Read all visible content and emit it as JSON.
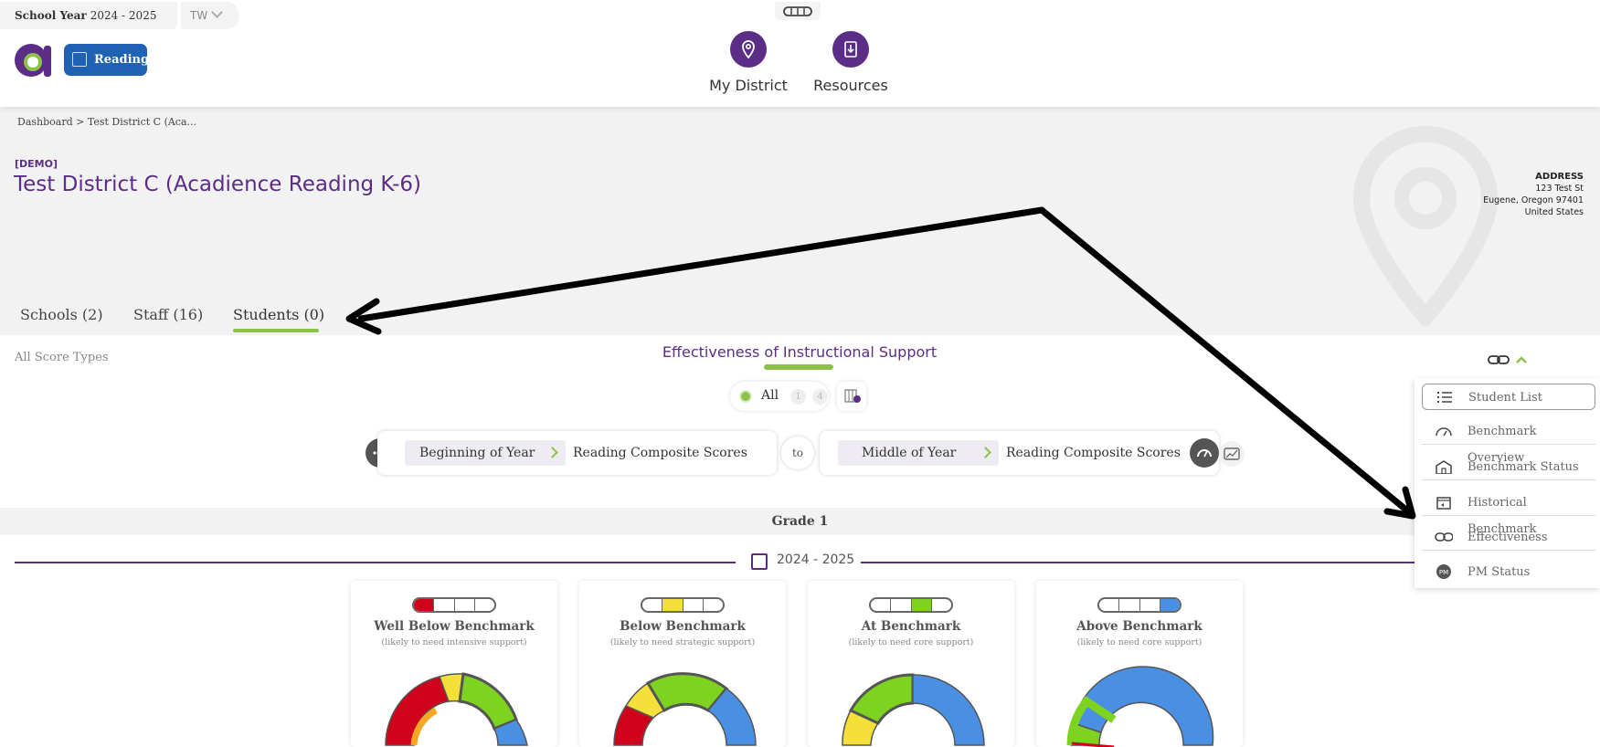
{
  "topbar": {
    "school_year_label": "School Year",
    "school_year_value": "2024 - 2025",
    "user_initials": "TW",
    "product_badge": "Reading",
    "nav": [
      {
        "label": "My District",
        "icon": "map-pin-icon"
      },
      {
        "label": "Resources",
        "icon": "download-doc-icon"
      }
    ]
  },
  "header": {
    "breadcrumb": "Dashboard > Test District C (Aca...",
    "demo_tag": "[DEMO]",
    "district_name": "Test District C (Acadience Reading K-6)",
    "address": {
      "heading": "ADDRESS",
      "line1": "123 Test St",
      "line2": "Eugene, Oregon 97401",
      "line3": "United States"
    },
    "tabs": [
      {
        "label": "Schools (2)"
      },
      {
        "label": "Staff (16)"
      },
      {
        "label": "Students (0)",
        "active": true
      }
    ]
  },
  "main": {
    "score_types": "All Score Types",
    "title": "Effectiveness of Instructional Support",
    "filter": {
      "all_label": "All",
      "count_1": "1",
      "count_2": "4"
    },
    "from": {
      "period": "Beginning of Year",
      "measure": "Reading Composite Scores"
    },
    "to_label": "to",
    "to": {
      "period": "Middle of Year",
      "measure": "Reading Composite Scores"
    },
    "grade": "Grade 1",
    "year": "2024 - 2025",
    "cards": [
      {
        "title": "Well Below Benchmark",
        "subtitle": "(likely to need intensive support)",
        "highlight": "#d0021b"
      },
      {
        "title": "Below Benchmark",
        "subtitle": "(likely to need strategic support)",
        "highlight": "#f5e03a"
      },
      {
        "title": "At Benchmark",
        "subtitle": "(likely to need core support)",
        "highlight": "#7ed321"
      },
      {
        "title": "Above Benchmark",
        "subtitle": "(likely to need core support)",
        "highlight": "#4a90e2"
      }
    ]
  },
  "menu": {
    "items": [
      {
        "label": "Student List",
        "icon": "list-icon"
      },
      {
        "label": "Benchmark Overview",
        "icon": "gauge-icon"
      },
      {
        "label": "Benchmark Status",
        "icon": "school-icon"
      },
      {
        "label": "Historical Benchmark",
        "icon": "calendar-history-icon"
      },
      {
        "label": "Effectiveness",
        "icon": "link-icon"
      },
      {
        "label": "PM Status",
        "icon": "pm-icon"
      }
    ]
  },
  "colors": {
    "brand_purple": "#5c2d86",
    "accent_green": "#8bc34a",
    "well_below": "#d0021b",
    "below": "#f5e03a",
    "at": "#7ed321",
    "above": "#4a90e2"
  }
}
